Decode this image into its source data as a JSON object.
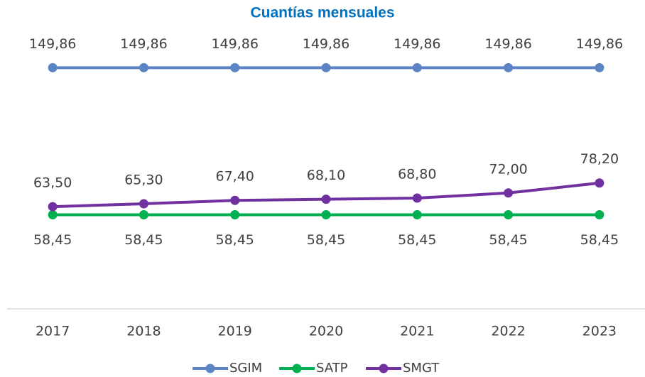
{
  "chart_data": {
    "type": "line",
    "title": "Cuantías mensuales",
    "categories": [
      "2017",
      "2018",
      "2019",
      "2020",
      "2021",
      "2022",
      "2023"
    ],
    "ylim": [
      0,
      180
    ],
    "series": [
      {
        "name": "SGIM",
        "color": "#5b84c4",
        "values": [
          149.86,
          149.86,
          149.86,
          149.86,
          149.86,
          149.86,
          149.86
        ],
        "value_labels": [
          "149,86",
          "149,86",
          "149,86",
          "149,86",
          "149,86",
          "149,86",
          "149,86"
        ]
      },
      {
        "name": "SATP",
        "color": "#00b050",
        "values": [
          58.45,
          58.45,
          58.45,
          58.45,
          58.45,
          58.45,
          58.45
        ],
        "value_labels": [
          "58,45",
          "58,45",
          "58,45",
          "58,45",
          "58,45",
          "58,45",
          "58,45"
        ]
      },
      {
        "name": "SMGT",
        "color": "#7030a0",
        "values": [
          63.5,
          65.3,
          67.4,
          68.1,
          68.8,
          72.0,
          78.2
        ],
        "value_labels": [
          "63,50",
          "65,30",
          "67,40",
          "68,10",
          "68,80",
          "72,00",
          "78,20"
        ]
      }
    ],
    "legend": "bottom"
  }
}
